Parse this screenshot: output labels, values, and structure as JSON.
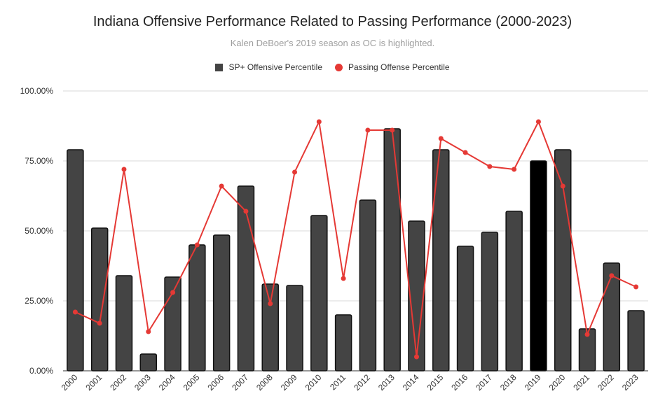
{
  "chart_data": {
    "type": "bar",
    "title": "Indiana Offensive Performance Related to Passing Performance (2000-2023)",
    "subtitle": "Kalen DeBoer's 2019 season as OC is highlighted.",
    "categories": [
      "2000",
      "2001",
      "2002",
      "2003",
      "2004",
      "2005",
      "2006",
      "2007",
      "2008",
      "2009",
      "2010",
      "2011",
      "2012",
      "2013",
      "2014",
      "2015",
      "2016",
      "2017",
      "2018",
      "2019",
      "2020",
      "2021",
      "2022",
      "2023"
    ],
    "series": [
      {
        "name": "SP+ Offensive Percentile",
        "kind": "bar",
        "color": "#444444",
        "highlight_color": "#000000",
        "highlight_category": "2019",
        "values": [
          79,
          51,
          34,
          6,
          33.5,
          45,
          48.5,
          66,
          31,
          30.5,
          55.5,
          20,
          61,
          86.5,
          53.5,
          79,
          44.5,
          49.5,
          57,
          75,
          79,
          15,
          38.5,
          21.5
        ]
      },
      {
        "name": "Passing Offense Percentile",
        "kind": "line",
        "color": "#e53935",
        "values": [
          21,
          17,
          72,
          14,
          28,
          45,
          66,
          57,
          24,
          71,
          89,
          33,
          86,
          86,
          5,
          83,
          78,
          73,
          72,
          89,
          66,
          13,
          34,
          30
        ]
      }
    ],
    "y_ticks": [
      "0.00%",
      "25.00%",
      "50.00%",
      "75.00%",
      "100.00%"
    ],
    "ylim": [
      0,
      100
    ],
    "legend_position": "top",
    "grid": true,
    "xlabel": "",
    "ylabel": ""
  }
}
